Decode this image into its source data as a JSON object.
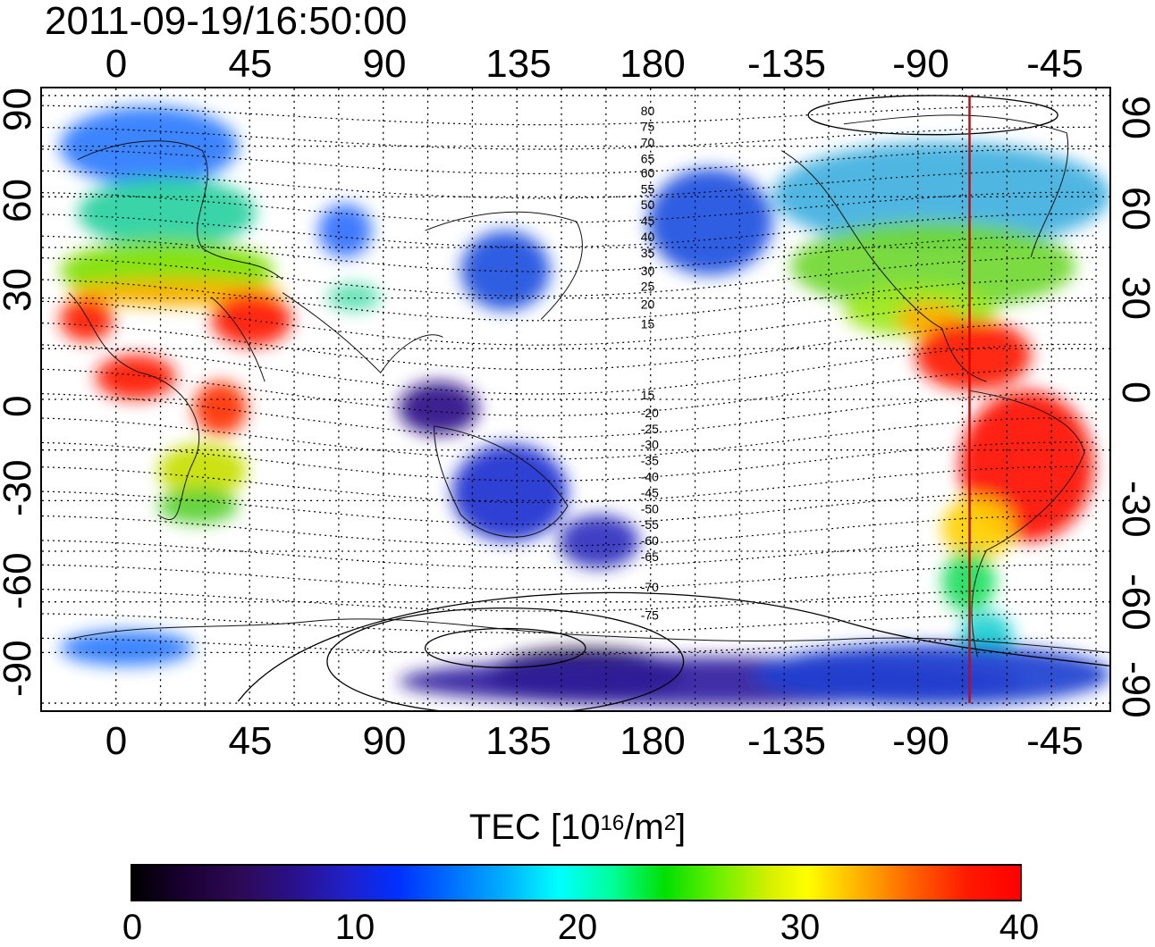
{
  "timestamp": "2011-09-19/16:50:00",
  "map": {
    "x_ticks": [
      "0",
      "45",
      "90",
      "135",
      "180",
      "-135",
      "-90",
      "-45"
    ],
    "y_ticks_left": [
      "90",
      "60",
      "30",
      "0",
      "-30",
      "-60",
      "-90"
    ],
    "y_ticks_right": [
      "90",
      "60",
      "30",
      "0",
      "-30",
      "-60",
      "-90"
    ],
    "contour_labels": [
      "80",
      "75",
      "70",
      "65",
      "60",
      "55",
      "50",
      "45",
      "40",
      "35",
      "30",
      "25",
      "20",
      "15",
      "15",
      "-20",
      "-25",
      "-30",
      "-35",
      "-40",
      "-45",
      "-50",
      "-55",
      "-60",
      "-65",
      "-70",
      "-75"
    ],
    "grid": true,
    "terminator_color": "#e00000"
  },
  "colorbar": {
    "title": "TEC  [10",
    "title_sup1": "16",
    "title_mid": "/m",
    "title_sup2": "2",
    "title_end": "]",
    "ticks": [
      "0",
      "10",
      "20",
      "30",
      "40"
    ],
    "range": [
      0,
      40
    ]
  }
}
